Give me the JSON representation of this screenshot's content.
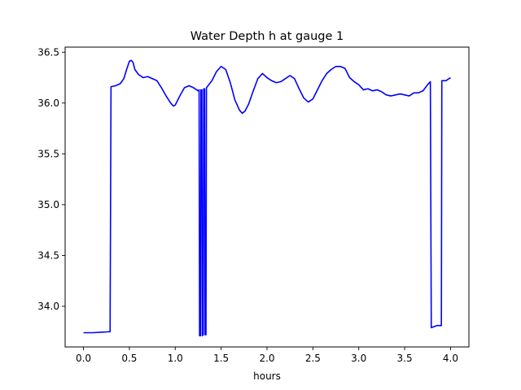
{
  "chart_data": {
    "type": "line",
    "title": "Water Depth h at gauge 1",
    "xlabel": "hours",
    "ylabel": "",
    "xlim": [
      -0.2,
      4.2
    ],
    "ylim": [
      33.6,
      36.55
    ],
    "grid": false,
    "x_ticks": [
      {
        "value": 0.0,
        "label": "0.0"
      },
      {
        "value": 0.5,
        "label": "0.5"
      },
      {
        "value": 1.0,
        "label": "1.0"
      },
      {
        "value": 1.5,
        "label": "1.5"
      },
      {
        "value": 2.0,
        "label": "2.0"
      },
      {
        "value": 2.5,
        "label": "2.5"
      },
      {
        "value": 3.0,
        "label": "3.0"
      },
      {
        "value": 3.5,
        "label": "3.5"
      },
      {
        "value": 4.0,
        "label": "4.0"
      }
    ],
    "y_ticks": [
      {
        "value": 34.0,
        "label": "34.0"
      },
      {
        "value": 34.5,
        "label": "34.5"
      },
      {
        "value": 35.0,
        "label": "35.0"
      },
      {
        "value": 35.5,
        "label": "35.5"
      },
      {
        "value": 36.0,
        "label": "36.0"
      },
      {
        "value": 36.5,
        "label": "36.5"
      }
    ],
    "series": [
      {
        "color": "#0000ff",
        "points": [
          [
            0.0,
            33.74
          ],
          [
            0.1,
            33.74
          ],
          [
            0.2,
            33.745
          ],
          [
            0.29,
            33.75
          ],
          [
            0.3,
            36.16
          ],
          [
            0.35,
            36.17
          ],
          [
            0.4,
            36.19
          ],
          [
            0.44,
            36.24
          ],
          [
            0.47,
            36.33
          ],
          [
            0.5,
            36.41
          ],
          [
            0.52,
            36.42
          ],
          [
            0.54,
            36.4
          ],
          [
            0.56,
            36.33
          ],
          [
            0.6,
            36.28
          ],
          [
            0.65,
            36.25
          ],
          [
            0.7,
            36.26
          ],
          [
            0.75,
            36.24
          ],
          [
            0.8,
            36.22
          ],
          [
            0.85,
            36.15
          ],
          [
            0.9,
            36.07
          ],
          [
            0.95,
            36.0
          ],
          [
            0.98,
            35.97
          ],
          [
            1.0,
            35.98
          ],
          [
            1.05,
            36.07
          ],
          [
            1.1,
            36.15
          ],
          [
            1.15,
            36.17
          ],
          [
            1.2,
            36.15
          ],
          [
            1.25,
            36.12
          ],
          [
            1.26,
            36.13
          ],
          [
            1.265,
            33.71
          ],
          [
            1.275,
            33.71
          ],
          [
            1.28,
            36.13
          ],
          [
            1.29,
            36.13
          ],
          [
            1.295,
            33.71
          ],
          [
            1.305,
            33.72
          ],
          [
            1.31,
            36.14
          ],
          [
            1.32,
            36.14
          ],
          [
            1.325,
            33.72
          ],
          [
            1.335,
            33.72
          ],
          [
            1.34,
            36.15
          ],
          [
            1.4,
            36.22
          ],
          [
            1.45,
            36.31
          ],
          [
            1.5,
            36.36
          ],
          [
            1.55,
            36.33
          ],
          [
            1.6,
            36.2
          ],
          [
            1.65,
            36.03
          ],
          [
            1.7,
            35.93
          ],
          [
            1.73,
            35.9
          ],
          [
            1.76,
            35.92
          ],
          [
            1.8,
            35.99
          ],
          [
            1.85,
            36.12
          ],
          [
            1.9,
            36.24
          ],
          [
            1.95,
            36.29
          ],
          [
            2.0,
            36.25
          ],
          [
            2.05,
            36.22
          ],
          [
            2.1,
            36.2
          ],
          [
            2.15,
            36.21
          ],
          [
            2.2,
            36.24
          ],
          [
            2.25,
            36.27
          ],
          [
            2.3,
            36.24
          ],
          [
            2.35,
            36.14
          ],
          [
            2.4,
            36.05
          ],
          [
            2.45,
            36.01
          ],
          [
            2.5,
            36.04
          ],
          [
            2.55,
            36.13
          ],
          [
            2.6,
            36.22
          ],
          [
            2.65,
            36.29
          ],
          [
            2.7,
            36.33
          ],
          [
            2.75,
            36.36
          ],
          [
            2.8,
            36.36
          ],
          [
            2.85,
            36.34
          ],
          [
            2.9,
            36.25
          ],
          [
            2.95,
            36.21
          ],
          [
            3.0,
            36.18
          ],
          [
            3.05,
            36.13
          ],
          [
            3.1,
            36.14
          ],
          [
            3.15,
            36.12
          ],
          [
            3.2,
            36.13
          ],
          [
            3.25,
            36.11
          ],
          [
            3.3,
            36.08
          ],
          [
            3.35,
            36.07
          ],
          [
            3.4,
            36.08
          ],
          [
            3.45,
            36.09
          ],
          [
            3.5,
            36.08
          ],
          [
            3.55,
            36.07
          ],
          [
            3.6,
            36.1
          ],
          [
            3.65,
            36.1
          ],
          [
            3.7,
            36.12
          ],
          [
            3.75,
            36.18
          ],
          [
            3.78,
            36.21
          ],
          [
            3.79,
            33.79
          ],
          [
            3.85,
            33.81
          ],
          [
            3.9,
            33.81
          ],
          [
            3.905,
            36.22
          ],
          [
            3.95,
            36.22
          ],
          [
            4.0,
            36.25
          ]
        ]
      }
    ]
  }
}
